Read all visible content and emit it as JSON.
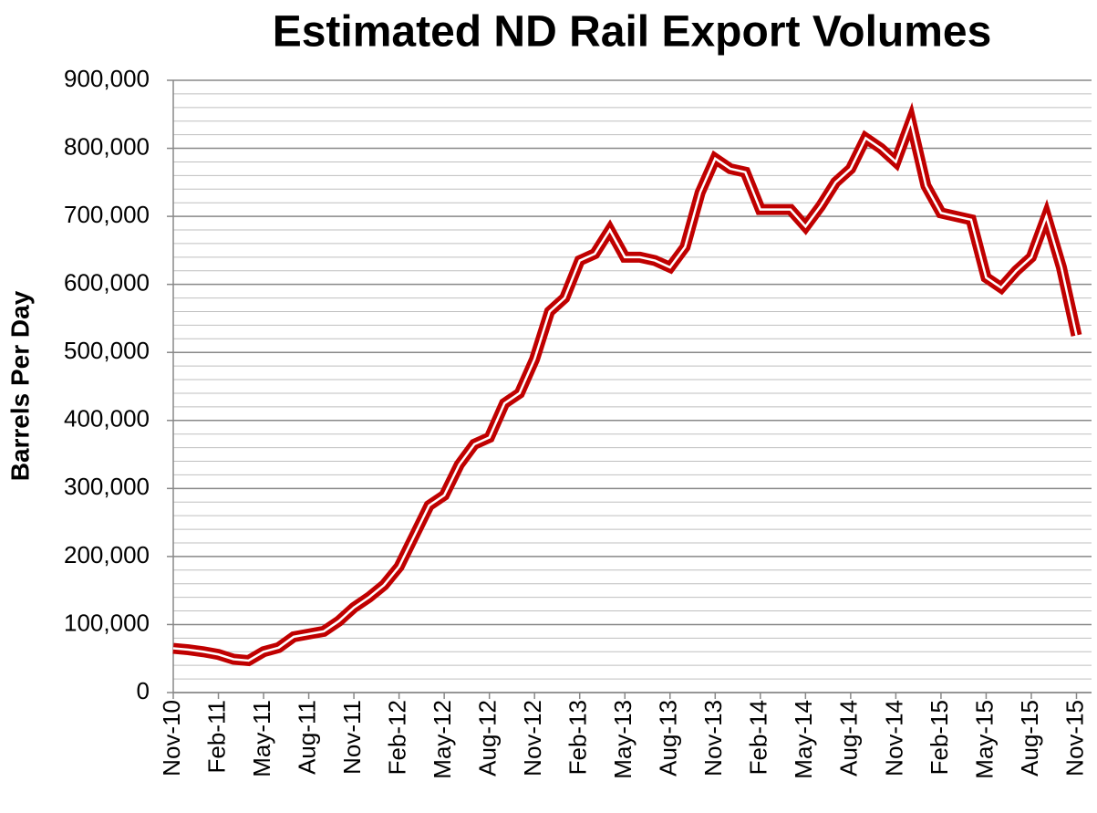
{
  "chart_data": {
    "type": "line",
    "title": "Estimated ND Rail Export Volumes",
    "y_label": "Barrels Per Day",
    "categories": [
      "Nov-10",
      null,
      null,
      "Feb-11",
      null,
      null,
      "May-11",
      null,
      null,
      "Aug-11",
      null,
      null,
      "Nov-11",
      null,
      null,
      "Feb-12",
      null,
      null,
      "May-12",
      null,
      null,
      "Aug-12",
      null,
      null,
      "Nov-12",
      null,
      null,
      "Feb-13",
      null,
      null,
      "May-13",
      null,
      null,
      "Aug-13",
      null,
      null,
      "Nov-13",
      null,
      null,
      "Feb-14",
      null,
      null,
      "May-14",
      null,
      null,
      "Aug-14",
      null,
      null,
      "Nov-14",
      null,
      null,
      "Feb-15",
      null,
      null,
      "May-15",
      null,
      null,
      "Aug-15",
      null,
      null,
      "Nov-15"
    ],
    "series": [
      {
        "name": "Barrels Per Day",
        "color": "#c00000",
        "values": [
          65000,
          63000,
          60000,
          56000,
          49000,
          47000,
          60000,
          66000,
          82000,
          86000,
          90000,
          105000,
          125000,
          140000,
          158000,
          185000,
          230000,
          275000,
          290000,
          335000,
          365000,
          375000,
          425000,
          440000,
          490000,
          560000,
          580000,
          635000,
          645000,
          680000,
          640000,
          640000,
          635000,
          625000,
          655000,
          735000,
          785000,
          770000,
          765000,
          710000,
          710000,
          710000,
          685000,
          715000,
          750000,
          770000,
          815000,
          800000,
          780000,
          840000,
          745000,
          705000,
          700000,
          695000,
          610000,
          595000,
          620000,
          640000,
          700000,
          625000,
          525000
        ]
      }
    ],
    "ylim": [
      0,
      900000
    ],
    "yticks": [
      {
        "value": 0,
        "label": "0"
      },
      {
        "value": 100000,
        "label": "100,000"
      },
      {
        "value": 200000,
        "label": "200,000"
      },
      {
        "value": 300000,
        "label": "300,000"
      },
      {
        "value": 400000,
        "label": "400,000"
      },
      {
        "value": 500000,
        "label": "500,000"
      },
      {
        "value": 600000,
        "label": "600,000"
      },
      {
        "value": 700000,
        "label": "700,000"
      },
      {
        "value": 800000,
        "label": "800,000"
      },
      {
        "value": 900000,
        "label": "900,000"
      }
    ],
    "grid": true
  }
}
